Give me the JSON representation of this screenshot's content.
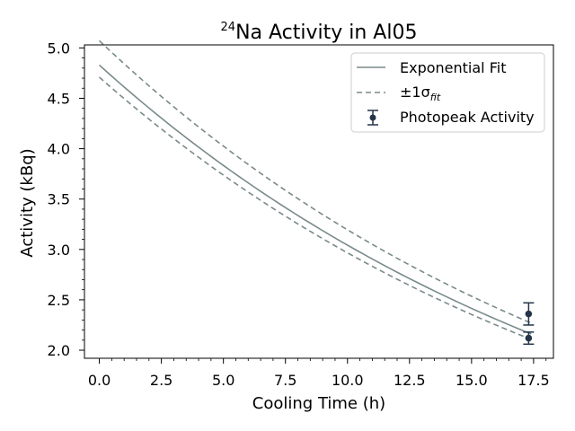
{
  "chart_data": {
    "type": "line",
    "title": {
      "sup": "24",
      "text": "Na Activity in Al05"
    },
    "xlabel": "Cooling Time (h)",
    "ylabel": "Activity (kBq)",
    "xlim": [
      -0.6,
      18.3
    ],
    "ylim": [
      1.92,
      5.03
    ],
    "xticks": [
      0.0,
      2.5,
      5.0,
      7.5,
      10.0,
      12.5,
      15.0,
      17.5
    ],
    "xtick_labels": [
      "0.0",
      "2.5",
      "5.0",
      "7.5",
      "10.0",
      "12.5",
      "15.0",
      "17.5"
    ],
    "yticks": [
      2.0,
      2.5,
      3.0,
      3.5,
      4.0,
      4.5,
      5.0
    ],
    "ytick_labels": [
      "2.0",
      "2.5",
      "3.0",
      "3.5",
      "4.0",
      "4.5",
      "5.0"
    ],
    "grid": false,
    "legend_position": "top-right",
    "fit": {
      "name": "Exponential Fit",
      "A0": 4.83,
      "half_life_h": 15.0,
      "x_range": [
        0.0,
        17.4
      ],
      "sigma_band": [
        0.05,
        0.025
      ],
      "band_name_prefix": "±1σ",
      "band_name_sub": "fit",
      "color": "#7a8a8a"
    },
    "series": [
      {
        "name": "Photopeak Activity",
        "color": "#253548",
        "points": [
          {
            "x": 17.3,
            "y": 2.36,
            "err": 0.11
          },
          {
            "x": 17.3,
            "y": 2.12,
            "err": 0.06
          }
        ]
      }
    ]
  }
}
